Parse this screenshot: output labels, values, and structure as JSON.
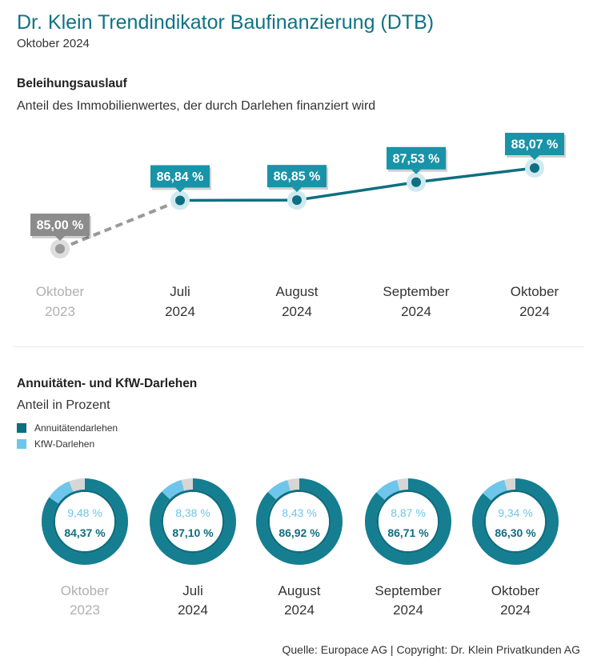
{
  "header": {
    "title": "Dr. Klein Trendindikator Baufinanzierung (DTB)",
    "subtitle": "Oktober 2024"
  },
  "section1": {
    "title": "Beleihungsauslauf",
    "subtitle": "Anteil des Immobilienwertes, der durch Darlehen finanziert wird"
  },
  "section2": {
    "title": "Annuitäten- und KfW-Darlehen",
    "subtitle": "Anteil in Prozent"
  },
  "colors": {
    "teal_dark": "#0e6f80",
    "teal_mid": "#1993a8",
    "kfw_light": "#6ec6ea",
    "gray": "#8a8a8a",
    "gray_light": "#d6d6d6",
    "muted_text": "#b0b0b0"
  },
  "chart_data": [
    {
      "type": "line",
      "title": "Beleihungsauslauf",
      "subtitle": "Anteil des Immobilienwertes, der durch Darlehen finanziert wird",
      "categories": [
        [
          "Oktober",
          "2023"
        ],
        [
          "Juli",
          "2024"
        ],
        [
          "August",
          "2024"
        ],
        [
          "September",
          "2024"
        ],
        [
          "Oktober",
          "2024"
        ]
      ],
      "values": [
        85.0,
        86.84,
        86.85,
        87.53,
        88.07
      ],
      "labels": [
        "85,00 %",
        "86,84 %",
        "86,85 %",
        "87,53 %",
        "88,07 %"
      ],
      "reference_index": 0,
      "grid": false
    },
    {
      "type": "pie",
      "title": "Annuitäten- und KfW-Darlehen",
      "subtitle": "Anteil in Prozent",
      "legend": {
        "placement": "top-left",
        "items": [
          {
            "name": "Annuitätendarlehen",
            "color": "#0e6f80"
          },
          {
            "name": "KfW-Darlehen",
            "color": "#6ec6ea"
          }
        ]
      },
      "donuts": [
        {
          "category": [
            "Oktober",
            "2023"
          ],
          "annuitaeten": 84.37,
          "kfw": 9.48,
          "annuitaeten_label": "84,37 %",
          "kfw_label": "9,48 %",
          "muted": true
        },
        {
          "category": [
            "Juli",
            "2024"
          ],
          "annuitaeten": 87.1,
          "kfw": 8.38,
          "annuitaeten_label": "87,10 %",
          "kfw_label": "8,38 %",
          "muted": false
        },
        {
          "category": [
            "August",
            "2024"
          ],
          "annuitaeten": 86.92,
          "kfw": 8.43,
          "annuitaeten_label": "86,92 %",
          "kfw_label": "8,43 %",
          "muted": false
        },
        {
          "category": [
            "September",
            "2024"
          ],
          "annuitaeten": 86.71,
          "kfw": 8.87,
          "annuitaeten_label": "86,71 %",
          "kfw_label": "8,87 %",
          "muted": false
        },
        {
          "category": [
            "Oktober",
            "2024"
          ],
          "annuitaeten": 86.3,
          "kfw": 9.34,
          "annuitaeten_label": "86,30 %",
          "kfw_label": "9,34 %",
          "muted": false
        }
      ]
    }
  ],
  "footer": {
    "source": "Quelle: Europace AG | Copyright: Dr. Klein Privatkunden AG"
  }
}
